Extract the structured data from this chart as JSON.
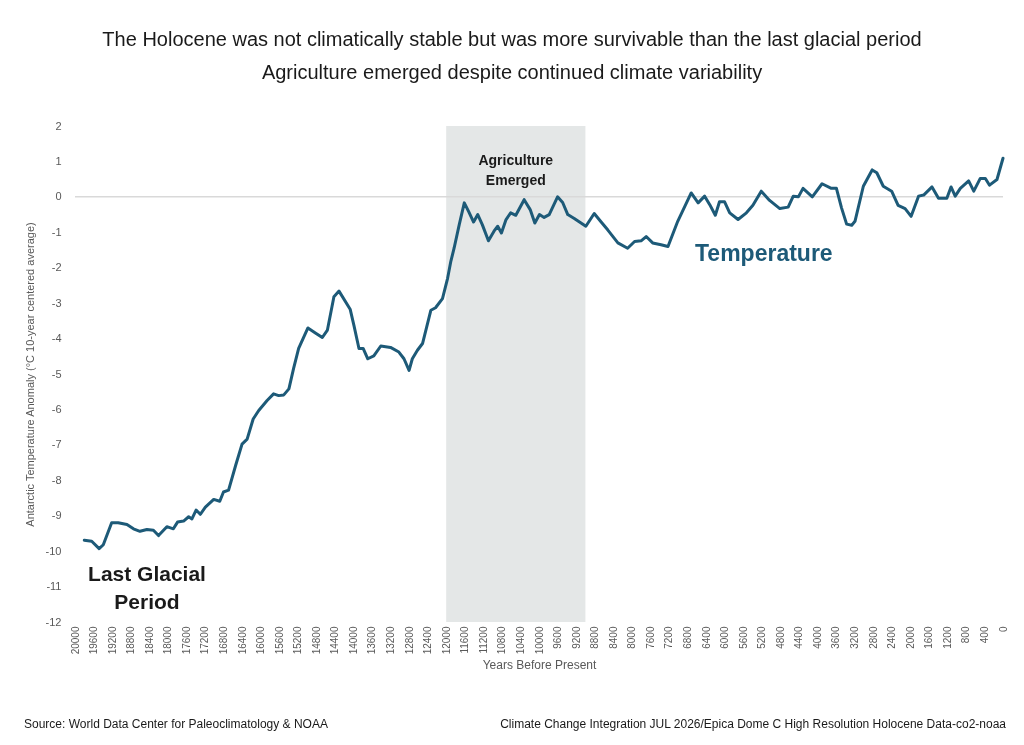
{
  "chart_data": {
    "type": "line",
    "title": "The Holocene was not climatically stable but was more survivable than the last glacial period",
    "subtitle": "Agriculture emerged despite continued climate variability",
    "xlabel": "Years Before Present",
    "ylabel": "Antarctic Temperature Anomaly (°C 10-year centered average)",
    "x": [
      19800,
      19640,
      19480,
      19390,
      19210,
      19070,
      18880,
      18740,
      18600,
      18450,
      18310,
      18200,
      18020,
      17880,
      17790,
      17660,
      17550,
      17480,
      17390,
      17300,
      17190,
      17010,
      16880,
      16800,
      16690,
      16540,
      16400,
      16290,
      16160,
      16040,
      15860,
      15720,
      15610,
      15500,
      15390,
      15290,
      15180,
      14980,
      14820,
      14670,
      14560,
      14420,
      14310,
      14070,
      13990,
      13880,
      13790,
      13690,
      13560,
      13410,
      13200,
      13020,
      12910,
      12800,
      12730,
      12620,
      12510,
      12330,
      12230,
      12080,
      11970,
      11900,
      11830,
      11720,
      11610,
      11510,
      11410,
      11320,
      11220,
      11090,
      10970,
      10890,
      10810,
      10710,
      10610,
      10500,
      10320,
      10190,
      10090,
      9990,
      9890,
      9780,
      9600,
      9490,
      9380,
      9240,
      8990,
      8810,
      8660,
      8520,
      8300,
      8090,
      7940,
      7800,
      7690,
      7550,
      7370,
      7220,
      7010,
      6720,
      6570,
      6430,
      6320,
      6200,
      6110,
      6000,
      5890,
      5710,
      5530,
      5390,
      5210,
      5030,
      4810,
      4630,
      4520,
      4410,
      4310,
      4110,
      3900,
      3700,
      3590,
      3480,
      3370,
      3260,
      3190,
      3010,
      2820,
      2720,
      2580,
      2400,
      2260,
      2110,
      1980,
      1820,
      1710,
      1530,
      1390,
      1210,
      1120,
      1030,
      920,
      740,
      630,
      490,
      380,
      290,
      130,
      0
    ],
    "series": [
      {
        "name": "Temperature",
        "color": "#1d5a78",
        "values": [
          -9.69,
          -9.72,
          -9.93,
          -9.82,
          -9.2,
          -9.2,
          -9.25,
          -9.37,
          -9.44,
          -9.39,
          -9.41,
          -9.56,
          -9.31,
          -9.37,
          -9.18,
          -9.15,
          -9.03,
          -9.09,
          -8.84,
          -8.96,
          -8.76,
          -8.54,
          -8.59,
          -8.33,
          -8.28,
          -7.59,
          -6.98,
          -6.84,
          -6.27,
          -6.03,
          -5.75,
          -5.56,
          -5.61,
          -5.59,
          -5.42,
          -4.85,
          -4.28,
          -3.7,
          -3.84,
          -3.97,
          -3.76,
          -2.82,
          -2.66,
          -3.17,
          -3.62,
          -4.28,
          -4.28,
          -4.57,
          -4.49,
          -4.21,
          -4.25,
          -4.38,
          -4.57,
          -4.9,
          -4.57,
          -4.33,
          -4.14,
          -3.2,
          -3.13,
          -2.87,
          -2.3,
          -1.82,
          -1.45,
          -0.79,
          -0.17,
          -0.43,
          -0.71,
          -0.5,
          -0.79,
          -1.24,
          -0.97,
          -0.83,
          -1.02,
          -0.64,
          -0.45,
          -0.52,
          -0.08,
          -0.36,
          -0.74,
          -0.5,
          -0.58,
          -0.5,
          0.0,
          -0.16,
          -0.5,
          -0.61,
          -0.83,
          -0.47,
          -0.71,
          -0.93,
          -1.3,
          -1.45,
          -1.26,
          -1.24,
          -1.12,
          -1.3,
          -1.35,
          -1.4,
          -0.69,
          0.11,
          -0.17,
          0.02,
          -0.22,
          -0.52,
          -0.14,
          -0.14,
          -0.45,
          -0.64,
          -0.45,
          -0.24,
          0.16,
          -0.1,
          -0.33,
          -0.29,
          0.02,
          0.0,
          0.24,
          0.0,
          0.37,
          0.24,
          0.24,
          -0.31,
          -0.77,
          -0.8,
          -0.69,
          0.3,
          0.76,
          0.68,
          0.3,
          0.16,
          -0.24,
          -0.33,
          -0.55,
          0.02,
          0.05,
          0.28,
          -0.04,
          -0.04,
          0.28,
          0.02,
          0.24,
          0.45,
          0.16,
          0.52,
          0.52,
          0.33,
          0.49,
          1.09
        ]
      }
    ],
    "xlim": [
      20000,
      0
    ],
    "xticks": [
      20000,
      19600,
      19200,
      18800,
      18400,
      18000,
      17600,
      17200,
      16800,
      16400,
      16000,
      15600,
      15200,
      14800,
      14400,
      14000,
      13600,
      13200,
      12800,
      12400,
      12000,
      11600,
      11200,
      10800,
      10400,
      10000,
      9600,
      9200,
      8800,
      8400,
      8000,
      7600,
      7200,
      6800,
      6400,
      6000,
      5600,
      5200,
      4800,
      4400,
      4000,
      3600,
      3200,
      2800,
      2400,
      2000,
      1600,
      1200,
      800,
      400,
      0
    ],
    "ylim": [
      -12,
      2
    ],
    "yticks": [
      -12,
      -11,
      -10,
      -9,
      -8,
      -7,
      -6,
      -5,
      -4,
      -3,
      -2,
      -1,
      0,
      1,
      2
    ],
    "grid": false,
    "legend": false,
    "marker": "none",
    "line_style": "solid",
    "ref_lines": [
      {
        "axis": "y",
        "value": 0,
        "color": "#d9d9d9"
      }
    ],
    "bands": [
      {
        "axis": "x",
        "from": 12000,
        "to": 9000,
        "label": "Agriculture Emerged",
        "color": "#e4e7e7"
      }
    ],
    "annotations": [
      "Last Glacial Period",
      "Source: World Data Center for Paleoclimatology & NOAA",
      "Climate Change Integration JUL 2026/Epica Dome C High Resolution Holocene Data-co2-noaa"
    ]
  }
}
